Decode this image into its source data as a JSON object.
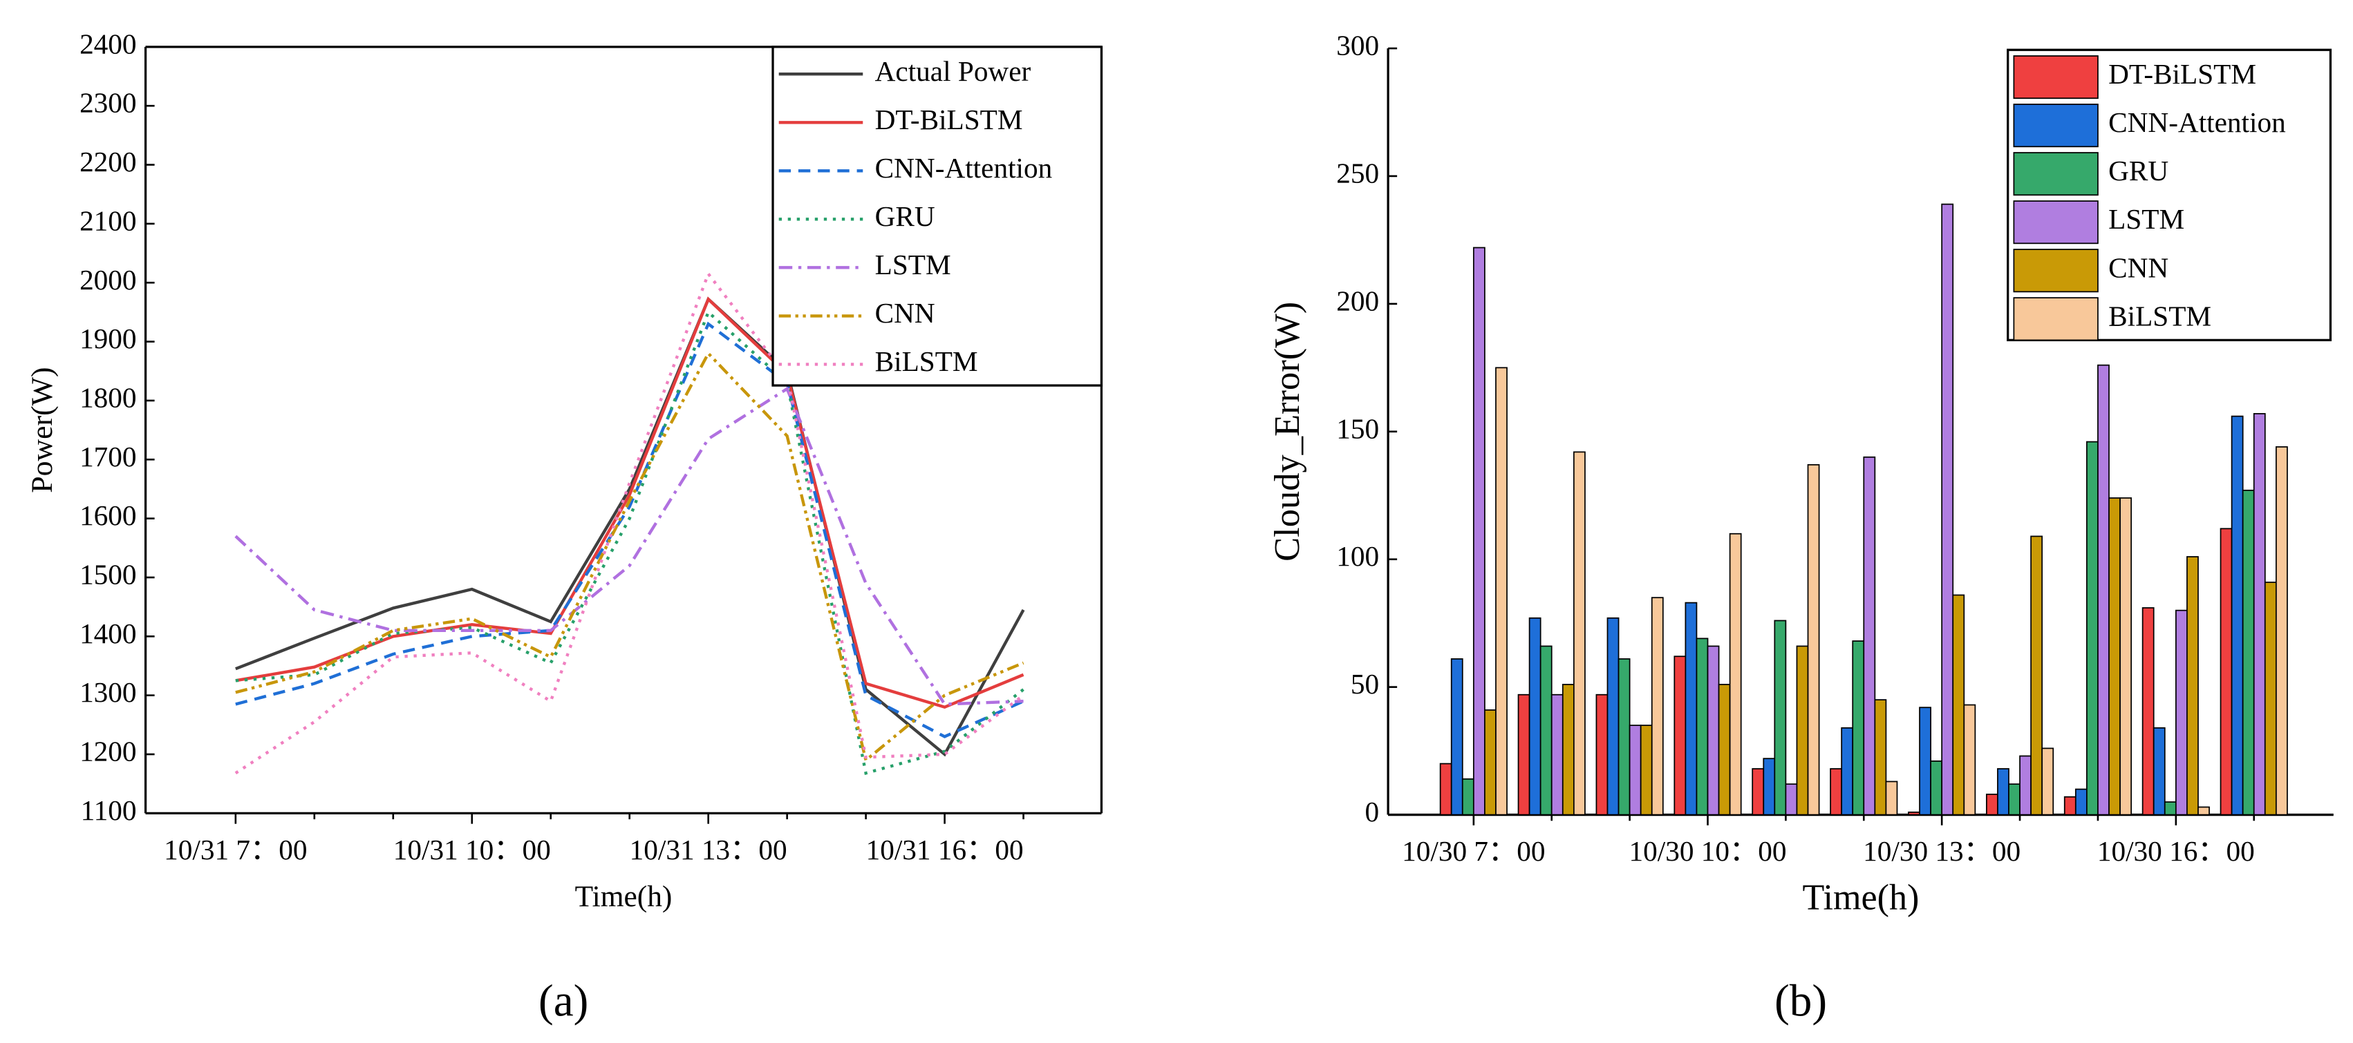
{
  "chart_data": [
    {
      "type": "line",
      "subtitle": "(a)",
      "x_label": "Time(h)",
      "y_label": "Power(W)",
      "categories": [
        "10/31 7：00",
        null,
        null,
        "10/31 10：00",
        null,
        null,
        "10/31 13：00",
        null,
        null,
        "10/31 16：00",
        null
      ],
      "ylim": [
        1100,
        2400
      ],
      "yticks": [
        1100,
        1200,
        1300,
        1400,
        1500,
        1600,
        1700,
        1800,
        1900,
        2000,
        2100,
        2200,
        2300,
        2400
      ],
      "legend": "upper right",
      "series": [
        {
          "name": "Actual Power",
          "color": "#3f3f3f",
          "style": "solid",
          "values": [
            1345,
            1397,
            1448,
            1480,
            1425,
            1650,
            1972,
            1850,
            1310,
            1200,
            1445
          ]
        },
        {
          "name": "DT-BiLSTM",
          "color": "#e43d3d",
          "style": "solid",
          "values": [
            1325,
            1348,
            1400,
            1420,
            1405,
            1640,
            1972,
            1845,
            1320,
            1280,
            1335
          ]
        },
        {
          "name": "CNN-Attention",
          "color": "#1f6fd6",
          "style": "dashed",
          "values": [
            1285,
            1320,
            1370,
            1400,
            1410,
            1620,
            1930,
            1830,
            1300,
            1230,
            1290
          ]
        },
        {
          "name": "GRU",
          "color": "#27a06a",
          "style": "dotted",
          "values": [
            1325,
            1335,
            1405,
            1415,
            1355,
            1600,
            1950,
            1830,
            1168,
            1205,
            1310
          ]
        },
        {
          "name": "LSTM",
          "color": "#b070e0",
          "style": "dashdot",
          "values": [
            1570,
            1445,
            1410,
            1410,
            1410,
            1520,
            1735,
            1820,
            1490,
            1285,
            1290
          ]
        },
        {
          "name": "CNN",
          "color": "#c8960a",
          "style": "dashdotdot",
          "values": [
            1305,
            1340,
            1410,
            1430,
            1365,
            1630,
            1880,
            1740,
            1190,
            1300,
            1355
          ]
        },
        {
          "name": "BiLSTM",
          "color": "#f080c0",
          "style": "dotted",
          "values": [
            1168,
            1255,
            1365,
            1372,
            1290,
            1660,
            2015,
            1840,
            1195,
            1200,
            1300
          ]
        }
      ]
    },
    {
      "type": "bar",
      "subtitle": "(b)",
      "x_label": "Time(h)",
      "y_label": "Cloudy_Error(W)",
      "categories": [
        "10/30 7：00",
        null,
        null,
        "10/30 10：00",
        null,
        null,
        "10/30 13：00",
        null,
        null,
        "10/30 16：00",
        null
      ],
      "ylim": [
        0,
        300
      ],
      "yticks": [
        0,
        50,
        100,
        150,
        200,
        250,
        300
      ],
      "legend": "upper right",
      "series": [
        {
          "name": "DT-BiLSTM",
          "color": "#ef4040",
          "values": [
            20,
            47,
            47,
            62,
            18,
            18,
            1,
            8,
            7,
            81,
            112
          ]
        },
        {
          "name": "CNN-Attention",
          "color": "#1e6fd9",
          "values": [
            61,
            77,
            77,
            83,
            22,
            34,
            42,
            18,
            10,
            34,
            156
          ]
        },
        {
          "name": "GRU",
          "color": "#36a96b",
          "values": [
            14,
            66,
            61,
            69,
            76,
            68,
            21,
            12,
            146,
            5,
            127
          ]
        },
        {
          "name": "LSTM",
          "color": "#b07ee0",
          "values": [
            222,
            47,
            35,
            66,
            12,
            140,
            239,
            23,
            176,
            80,
            157
          ]
        },
        {
          "name": "CNN",
          "color": "#c99a06",
          "values": [
            41,
            51,
            35,
            51,
            66,
            45,
            86,
            109,
            124,
            101,
            91
          ]
        },
        {
          "name": "BiLSTM",
          "color": "#f8c89a",
          "values": [
            175,
            142,
            85,
            110,
            137,
            13,
            43,
            26,
            124,
            3,
            144
          ]
        }
      ]
    }
  ]
}
